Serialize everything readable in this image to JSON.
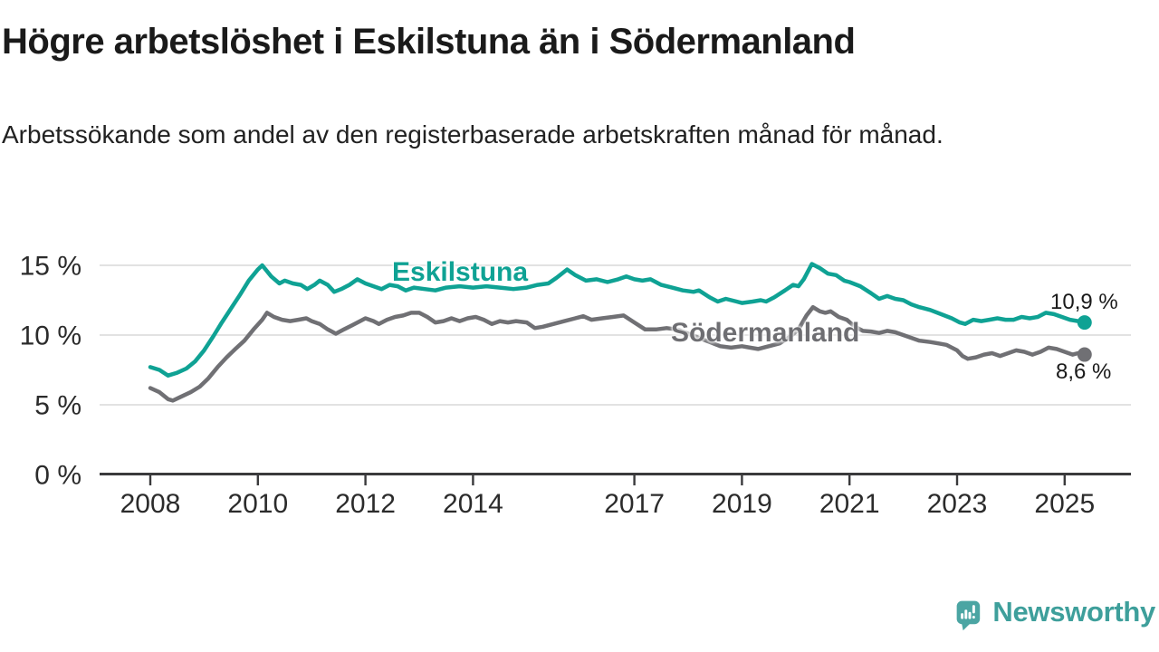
{
  "title": "Högre arbetslöshet i Eskilstuna än i Södermanland",
  "subtitle": "Arbetssökande som andel av den registerbaserade arbetskraften månad för månad.",
  "branding": {
    "name": "Newsworthy",
    "icon": "bar-chart-speech-bubble-icon",
    "icon_color": "#4BA5A3",
    "text_color": "#3E9F9B"
  },
  "chart_data": {
    "type": "line",
    "title": "Högre arbetslöshet i Eskilstuna än i Södermanland",
    "subtitle": "Arbetssökande som andel av den registerbaserade arbetskraften månad för månad.",
    "xlabel": "",
    "ylabel": "",
    "unit": "%",
    "grid": "horizontal",
    "legend": "inline-labels",
    "axis_color": "#3A3A3C",
    "grid_color": "#D8D8D8",
    "tick_label_color": "#2B2B2B",
    "xlim": [
      2007.9,
      2026.3
    ],
    "ylim": [
      0,
      16.8
    ],
    "x_ticks": [
      {
        "value": 2008,
        "label": "2008"
      },
      {
        "value": 2010,
        "label": "2010"
      },
      {
        "value": 2012,
        "label": "2012"
      },
      {
        "value": 2014,
        "label": "2014"
      },
      {
        "value": 2017,
        "label": "2017"
      },
      {
        "value": 2019,
        "label": "2019"
      },
      {
        "value": 2021,
        "label": "2021"
      },
      {
        "value": 2023,
        "label": "2023"
      },
      {
        "value": 2025,
        "label": "2025"
      }
    ],
    "y_ticks": [
      {
        "value": 0,
        "label": "0 %"
      },
      {
        "value": 5,
        "label": "5 %"
      },
      {
        "value": 10,
        "label": "10 %"
      },
      {
        "value": 15,
        "label": "15 %"
      }
    ],
    "series": [
      {
        "name": "Eskilstuna",
        "color": "#0FA294",
        "end_label": "10,9 %",
        "last_value": 10.9,
        "points": [
          [
            2008.0,
            7.7
          ],
          [
            2008.17,
            7.5
          ],
          [
            2008.33,
            7.1
          ],
          [
            2008.5,
            7.3
          ],
          [
            2008.67,
            7.6
          ],
          [
            2008.83,
            8.1
          ],
          [
            2009.0,
            8.9
          ],
          [
            2009.17,
            9.9
          ],
          [
            2009.33,
            10.9
          ],
          [
            2009.5,
            11.9
          ],
          [
            2009.67,
            12.9
          ],
          [
            2009.83,
            13.9
          ],
          [
            2010.0,
            14.7
          ],
          [
            2010.08,
            15.0
          ],
          [
            2010.25,
            14.2
          ],
          [
            2010.4,
            13.7
          ],
          [
            2010.5,
            13.9
          ],
          [
            2010.65,
            13.7
          ],
          [
            2010.8,
            13.6
          ],
          [
            2010.92,
            13.3
          ],
          [
            2011.05,
            13.6
          ],
          [
            2011.15,
            13.9
          ],
          [
            2011.3,
            13.6
          ],
          [
            2011.42,
            13.1
          ],
          [
            2011.55,
            13.3
          ],
          [
            2011.7,
            13.6
          ],
          [
            2011.85,
            14.0
          ],
          [
            2012.0,
            13.7
          ],
          [
            2012.15,
            13.5
          ],
          [
            2012.3,
            13.3
          ],
          [
            2012.45,
            13.6
          ],
          [
            2012.6,
            13.5
          ],
          [
            2012.75,
            13.2
          ],
          [
            2012.9,
            13.4
          ],
          [
            2013.1,
            13.3
          ],
          [
            2013.3,
            13.2
          ],
          [
            2013.5,
            13.4
          ],
          [
            2013.75,
            13.5
          ],
          [
            2014.0,
            13.4
          ],
          [
            2014.25,
            13.5
          ],
          [
            2014.5,
            13.4
          ],
          [
            2014.75,
            13.3
          ],
          [
            2015.0,
            13.4
          ],
          [
            2015.2,
            13.6
          ],
          [
            2015.4,
            13.7
          ],
          [
            2015.55,
            14.1
          ],
          [
            2015.75,
            14.7
          ],
          [
            2015.9,
            14.3
          ],
          [
            2016.1,
            13.9
          ],
          [
            2016.3,
            14.0
          ],
          [
            2016.5,
            13.8
          ],
          [
            2016.7,
            14.0
          ],
          [
            2016.85,
            14.2
          ],
          [
            2017.0,
            14.0
          ],
          [
            2017.15,
            13.9
          ],
          [
            2017.3,
            14.0
          ],
          [
            2017.5,
            13.6
          ],
          [
            2017.7,
            13.4
          ],
          [
            2017.9,
            13.2
          ],
          [
            2018.1,
            13.1
          ],
          [
            2018.2,
            13.2
          ],
          [
            2018.4,
            12.7
          ],
          [
            2018.55,
            12.4
          ],
          [
            2018.7,
            12.6
          ],
          [
            2018.9,
            12.4
          ],
          [
            2019.0,
            12.3
          ],
          [
            2019.2,
            12.4
          ],
          [
            2019.35,
            12.5
          ],
          [
            2019.45,
            12.4
          ],
          [
            2019.6,
            12.7
          ],
          [
            2019.8,
            13.2
          ],
          [
            2019.95,
            13.6
          ],
          [
            2020.05,
            13.5
          ],
          [
            2020.15,
            14.0
          ],
          [
            2020.3,
            15.1
          ],
          [
            2020.45,
            14.8
          ],
          [
            2020.6,
            14.4
          ],
          [
            2020.75,
            14.3
          ],
          [
            2020.9,
            13.9
          ],
          [
            2021.0,
            13.8
          ],
          [
            2021.2,
            13.5
          ],
          [
            2021.4,
            13.0
          ],
          [
            2021.55,
            12.6
          ],
          [
            2021.7,
            12.8
          ],
          [
            2021.85,
            12.6
          ],
          [
            2022.0,
            12.5
          ],
          [
            2022.15,
            12.2
          ],
          [
            2022.3,
            12.0
          ],
          [
            2022.5,
            11.8
          ],
          [
            2022.7,
            11.5
          ],
          [
            2022.9,
            11.2
          ],
          [
            2023.05,
            10.9
          ],
          [
            2023.15,
            10.8
          ],
          [
            2023.3,
            11.1
          ],
          [
            2023.45,
            11.0
          ],
          [
            2023.6,
            11.1
          ],
          [
            2023.75,
            11.2
          ],
          [
            2023.9,
            11.1
          ],
          [
            2024.05,
            11.1
          ],
          [
            2024.2,
            11.3
          ],
          [
            2024.35,
            11.2
          ],
          [
            2024.5,
            11.3
          ],
          [
            2024.65,
            11.6
          ],
          [
            2024.8,
            11.5
          ],
          [
            2024.95,
            11.3
          ],
          [
            2025.1,
            11.1
          ],
          [
            2025.25,
            11.0
          ],
          [
            2025.37,
            10.9
          ]
        ]
      },
      {
        "name": "Södermanland",
        "color": "#707074",
        "end_label": "8,6 %",
        "last_value": 8.6,
        "points": [
          [
            2008.0,
            6.2
          ],
          [
            2008.17,
            5.9
          ],
          [
            2008.33,
            5.4
          ],
          [
            2008.42,
            5.3
          ],
          [
            2008.58,
            5.6
          ],
          [
            2008.75,
            5.9
          ],
          [
            2008.92,
            6.3
          ],
          [
            2009.08,
            6.9
          ],
          [
            2009.25,
            7.7
          ],
          [
            2009.42,
            8.4
          ],
          [
            2009.58,
            9.0
          ],
          [
            2009.75,
            9.6
          ],
          [
            2009.92,
            10.4
          ],
          [
            2010.08,
            11.1
          ],
          [
            2010.17,
            11.6
          ],
          [
            2010.3,
            11.3
          ],
          [
            2010.45,
            11.1
          ],
          [
            2010.6,
            11.0
          ],
          [
            2010.75,
            11.1
          ],
          [
            2010.9,
            11.2
          ],
          [
            2011.0,
            11.0
          ],
          [
            2011.15,
            10.8
          ],
          [
            2011.3,
            10.4
          ],
          [
            2011.45,
            10.1
          ],
          [
            2011.6,
            10.4
          ],
          [
            2011.75,
            10.7
          ],
          [
            2011.9,
            11.0
          ],
          [
            2012.0,
            11.2
          ],
          [
            2012.15,
            11.0
          ],
          [
            2012.25,
            10.8
          ],
          [
            2012.4,
            11.1
          ],
          [
            2012.55,
            11.3
          ],
          [
            2012.7,
            11.4
          ],
          [
            2012.85,
            11.6
          ],
          [
            2013.0,
            11.6
          ],
          [
            2013.15,
            11.3
          ],
          [
            2013.3,
            10.9
          ],
          [
            2013.45,
            11.0
          ],
          [
            2013.6,
            11.2
          ],
          [
            2013.75,
            11.0
          ],
          [
            2013.9,
            11.2
          ],
          [
            2014.05,
            11.3
          ],
          [
            2014.2,
            11.1
          ],
          [
            2014.35,
            10.8
          ],
          [
            2014.5,
            11.0
          ],
          [
            2014.65,
            10.9
          ],
          [
            2014.8,
            11.0
          ],
          [
            2015.0,
            10.9
          ],
          [
            2015.15,
            10.5
          ],
          [
            2015.3,
            10.6
          ],
          [
            2015.5,
            10.8
          ],
          [
            2015.7,
            11.0
          ],
          [
            2015.9,
            11.2
          ],
          [
            2016.05,
            11.35
          ],
          [
            2016.2,
            11.1
          ],
          [
            2016.4,
            11.2
          ],
          [
            2016.6,
            11.3
          ],
          [
            2016.8,
            11.4
          ],
          [
            2017.0,
            10.9
          ],
          [
            2017.2,
            10.4
          ],
          [
            2017.4,
            10.4
          ],
          [
            2017.6,
            10.5
          ],
          [
            2017.8,
            10.4
          ],
          [
            2018.0,
            10.1
          ],
          [
            2018.2,
            9.8
          ],
          [
            2018.4,
            9.5
          ],
          [
            2018.6,
            9.2
          ],
          [
            2018.8,
            9.1
          ],
          [
            2019.0,
            9.2
          ],
          [
            2019.15,
            9.1
          ],
          [
            2019.3,
            9.0
          ],
          [
            2019.5,
            9.2
          ],
          [
            2019.7,
            9.4
          ],
          [
            2019.9,
            9.9
          ],
          [
            2020.05,
            10.4
          ],
          [
            2020.2,
            11.4
          ],
          [
            2020.32,
            12.0
          ],
          [
            2020.45,
            11.7
          ],
          [
            2020.55,
            11.6
          ],
          [
            2020.65,
            11.7
          ],
          [
            2020.8,
            11.3
          ],
          [
            2020.95,
            11.1
          ],
          [
            2021.1,
            10.6
          ],
          [
            2021.25,
            10.3
          ],
          [
            2021.4,
            10.25
          ],
          [
            2021.55,
            10.15
          ],
          [
            2021.7,
            10.3
          ],
          [
            2021.85,
            10.2
          ],
          [
            2022.0,
            10.0
          ],
          [
            2022.15,
            9.8
          ],
          [
            2022.3,
            9.6
          ],
          [
            2022.5,
            9.5
          ],
          [
            2022.65,
            9.4
          ],
          [
            2022.8,
            9.3
          ],
          [
            2023.0,
            8.9
          ],
          [
            2023.1,
            8.5
          ],
          [
            2023.2,
            8.3
          ],
          [
            2023.35,
            8.4
          ],
          [
            2023.5,
            8.6
          ],
          [
            2023.65,
            8.7
          ],
          [
            2023.8,
            8.5
          ],
          [
            2023.95,
            8.7
          ],
          [
            2024.1,
            8.9
          ],
          [
            2024.25,
            8.8
          ],
          [
            2024.4,
            8.6
          ],
          [
            2024.55,
            8.8
          ],
          [
            2024.7,
            9.1
          ],
          [
            2024.85,
            9.0
          ],
          [
            2025.0,
            8.8
          ],
          [
            2025.15,
            8.6
          ],
          [
            2025.25,
            8.7
          ],
          [
            2025.37,
            8.6
          ]
        ]
      }
    ]
  }
}
